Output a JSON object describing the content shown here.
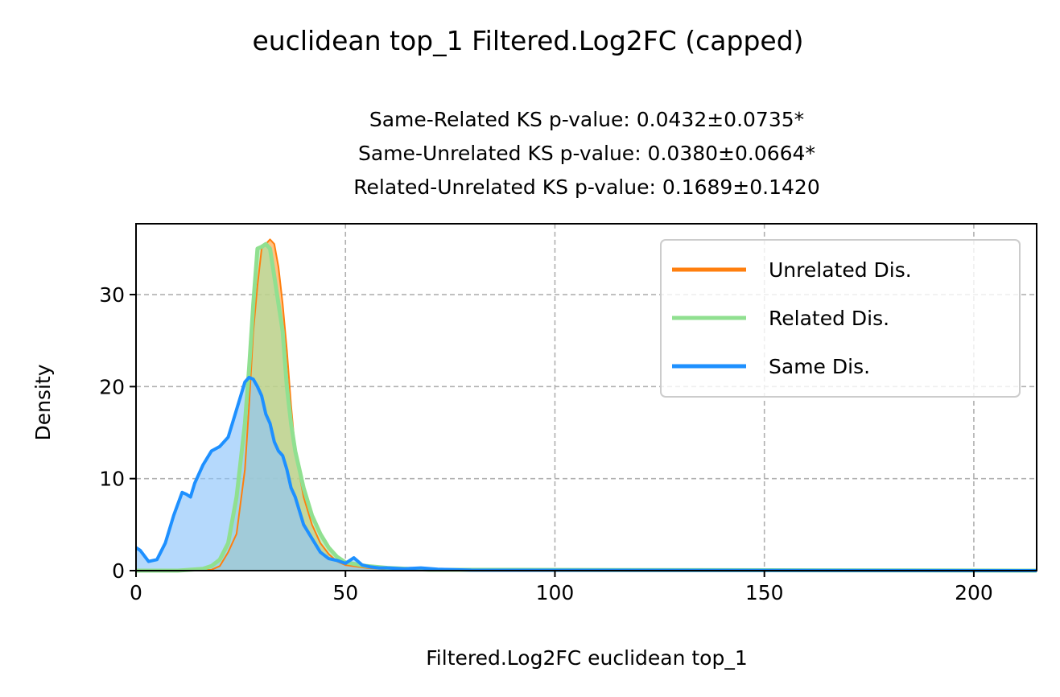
{
  "chart_data": {
    "type": "area",
    "title": "euclidean top_1 Filtered.Log2FC (capped)",
    "subtitle_lines": [
      "Same-Related KS p-value: 0.0432±0.0735*",
      "Same-Unrelated KS p-value: 0.0380±0.0664*",
      "Related-Unrelated KS p-value: 0.1689±0.1420"
    ],
    "xlabel": "Filtered.Log2FC euclidean top_1",
    "ylabel": "Density",
    "xlim": [
      0,
      215
    ],
    "ylim": [
      0,
      37.7
    ],
    "xticks": [
      0,
      50,
      100,
      150,
      200
    ],
    "yticks": [
      0,
      10,
      20,
      30
    ],
    "grid": true,
    "legend_position": "top-right",
    "series": [
      {
        "name": "Unrelated Dis.",
        "color": "#ff7f0e",
        "fill": "#ffa040",
        "x": [
          0,
          10,
          18,
          20,
          22,
          24,
          26,
          27,
          28,
          29,
          30,
          31,
          32,
          33,
          34,
          35,
          36,
          37,
          38,
          40,
          42,
          44,
          46,
          48,
          50,
          55,
          60,
          70,
          215
        ],
        "y": [
          0,
          0,
          0.1,
          0.5,
          2,
          4,
          11,
          18,
          26,
          31,
          35,
          35.5,
          36,
          35.5,
          33,
          29,
          24,
          18,
          13,
          8,
          5,
          3,
          1.8,
          1,
          0.6,
          0.3,
          0.15,
          0,
          0
        ]
      },
      {
        "name": "Related Dis.",
        "color": "#90e090",
        "fill": "#a6e4a6",
        "x": [
          0,
          10,
          16,
          18,
          20,
          22,
          24,
          26,
          27,
          28,
          29,
          30,
          31,
          32,
          33,
          34,
          35,
          36,
          37,
          38,
          40,
          42,
          44,
          46,
          48,
          50,
          55,
          60,
          70,
          215
        ],
        "y": [
          0,
          0,
          0.2,
          0.5,
          1.2,
          3,
          8,
          16,
          22,
          29,
          35,
          35.2,
          35.5,
          35,
          32,
          29,
          26,
          20,
          16,
          13,
          9,
          6,
          4,
          2.5,
          1.5,
          0.9,
          0.5,
          0.3,
          0.1,
          0
        ]
      },
      {
        "name": "Same Dis.",
        "color": "#1e90ff",
        "fill": "#8ec4fb",
        "x": [
          0,
          1,
          3,
          5,
          7,
          9,
          11,
          12,
          13,
          14,
          16,
          18,
          20,
          22,
          24,
          26,
          27,
          28,
          29,
          30,
          31,
          32,
          33,
          34,
          35,
          36,
          37,
          38,
          40,
          42,
          44,
          46,
          48,
          50,
          52,
          54,
          56,
          58,
          60,
          64,
          68,
          72,
          80,
          215
        ],
        "y": [
          2.5,
          2.2,
          1,
          1.2,
          3,
          6,
          8.5,
          8.3,
          8,
          9.5,
          11.5,
          13,
          13.5,
          14.5,
          17.5,
          20.5,
          21,
          20.8,
          20,
          19,
          17,
          16,
          14,
          13,
          12.5,
          11,
          9,
          8,
          5,
          3.5,
          2,
          1.3,
          1.1,
          0.8,
          1.4,
          0.6,
          0.4,
          0.3,
          0.3,
          0.2,
          0.3,
          0.15,
          0.05,
          0
        ]
      }
    ]
  }
}
